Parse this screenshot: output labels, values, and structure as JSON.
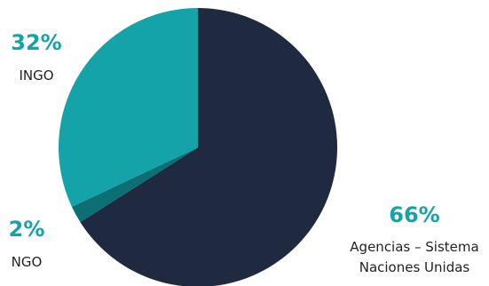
{
  "chart_data": {
    "type": "pie",
    "slices": [
      {
        "percent_label": "66%",
        "label_lines": [
          "Agencias – Sistema",
          "Naciones Unidas"
        ],
        "value": 66,
        "color": "#1f2a40",
        "label_color": "#14a3a8"
      },
      {
        "percent_label": "2%",
        "label_lines": [
          "NGO"
        ],
        "value": 2,
        "color": "#0b6f74",
        "label_color": "#14a3a8"
      },
      {
        "percent_label": "32%",
        "label_lines": [
          "INGO"
        ],
        "value": 32,
        "color": "#14a3a8",
        "label_color": "#14a3a8"
      }
    ],
    "legend": "none"
  }
}
